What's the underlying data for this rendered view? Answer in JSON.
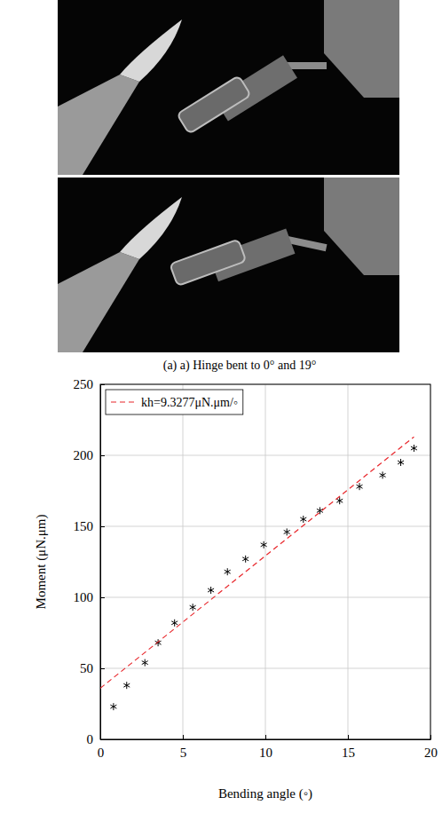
{
  "images": {
    "caption": "(a) a) Hinge bent to 0° and 19°"
  },
  "chart_data": {
    "type": "scatter",
    "x_label": "Bending angle (◦)",
    "y_label": "Moment (μN.μm)",
    "xlim": [
      0,
      20
    ],
    "ylim": [
      0,
      250
    ],
    "xticks": [
      0,
      5,
      10,
      15,
      20
    ],
    "yticks": [
      0,
      50,
      100,
      150,
      200,
      250
    ],
    "grid": true,
    "legend": "top-left",
    "series": [
      {
        "type": "scatter",
        "marker": "asterisk",
        "color": "#000000",
        "x": [
          0.8,
          1.6,
          2.7,
          3.5,
          4.5,
          5.6,
          6.7,
          7.7,
          8.8,
          9.9,
          11.3,
          12.3,
          13.3,
          14.5,
          15.7,
          17.1,
          18.2,
          19.0
        ],
        "values": [
          23,
          38,
          54,
          68,
          82,
          93,
          105,
          118,
          127,
          137,
          146,
          155,
          161,
          168,
          178,
          186,
          195,
          205
        ]
      },
      {
        "type": "line",
        "name": "kh=9.3277μN.μm/◦",
        "line_style": "dashed",
        "color": "#e8262b",
        "x": [
          0,
          19
        ],
        "values": [
          36,
          213
        ]
      }
    ]
  }
}
